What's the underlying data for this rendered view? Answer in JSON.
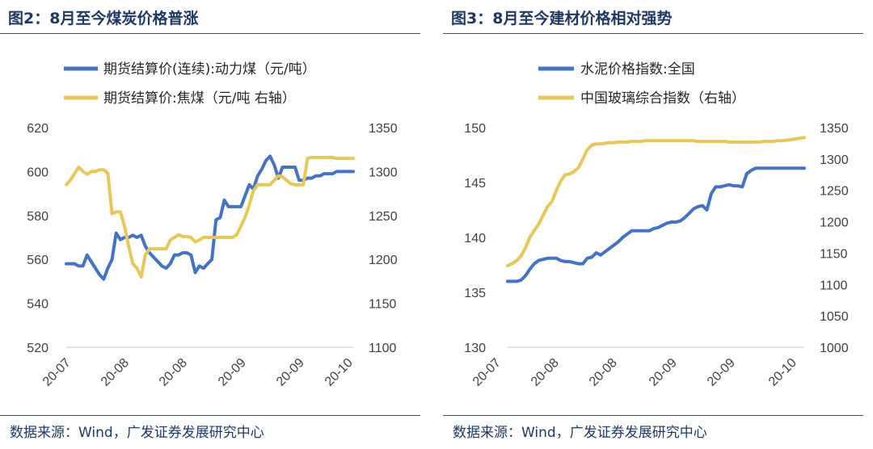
{
  "panels": [
    {
      "figure_title": "图2：8月至今煤炭价格普涨",
      "source": "数据来源：Wind，广发证券发展研究中心"
    },
    {
      "figure_title": "图3：8月至今建材价格相对强势",
      "source": "数据来源：Wind，广发证券发展研究中心"
    }
  ],
  "colors": {
    "blue": "#4472c4",
    "gold": "#e6c85a",
    "title": "#1f3864",
    "rule": "#44546a"
  },
  "chart_data": [
    {
      "type": "line",
      "title": "",
      "x_tick_labels": [
        "20-07",
        "20-08",
        "20-08",
        "20-09",
        "20-09",
        "20-10"
      ],
      "ylim_left": [
        520,
        620
      ],
      "yticks_left": [
        520,
        540,
        560,
        580,
        600,
        620
      ],
      "ylim_right": [
        1100,
        1350
      ],
      "yticks_right": [
        1100,
        1150,
        1200,
        1250,
        1300,
        1350
      ],
      "legend_position": "top",
      "series": [
        {
          "name": "期货结算价(连续):动力煤（元/吨）",
          "axis": "left",
          "color": "blue",
          "values": [
            558,
            558,
            558,
            557,
            557,
            562,
            559,
            556,
            553,
            551,
            556,
            560,
            572,
            569,
            570,
            570,
            571,
            570,
            571,
            566,
            563,
            561,
            559,
            557,
            556,
            558,
            562,
            562,
            563,
            563,
            562,
            554,
            557,
            556,
            558,
            560,
            578,
            579,
            587,
            584,
            584,
            584,
            584,
            589,
            594,
            592,
            598,
            601,
            605,
            607,
            603,
            597,
            602,
            602,
            602,
            602,
            596,
            596,
            597,
            597,
            598,
            598,
            599,
            599,
            599,
            600,
            600,
            600,
            600,
            600
          ]
        },
        {
          "name": "期货结算价:焦煤（元/吨 右轴）",
          "axis": "right",
          "color": "gold",
          "values": [
            1285,
            1290,
            1298,
            1305,
            1300,
            1297,
            1300,
            1300,
            1302,
            1302,
            1298,
            1252,
            1254,
            1254,
            1238,
            1215,
            1195,
            1190,
            1180,
            1205,
            1212,
            1212,
            1212,
            1212,
            1212,
            1222,
            1225,
            1228,
            1226,
            1226,
            1225,
            1220,
            1222,
            1225,
            1225,
            1225,
            1225,
            1225,
            1225,
            1225,
            1225,
            1228,
            1238,
            1248,
            1262,
            1278,
            1285,
            1285,
            1285,
            1285,
            1290,
            1295,
            1294,
            1290,
            1286,
            1285,
            1285,
            1285,
            1315,
            1316,
            1316,
            1316,
            1316,
            1316,
            1316,
            1315,
            1315,
            1315,
            1315,
            1315
          ]
        }
      ]
    },
    {
      "type": "line",
      "title": "",
      "x_tick_labels": [
        "20-07",
        "20-08",
        "20-08",
        "20-09",
        "20-09",
        "20-10"
      ],
      "ylim_left": [
        130,
        150
      ],
      "yticks_left": [
        130,
        135,
        140,
        145,
        150
      ],
      "ylim_right": [
        1000,
        1350
      ],
      "yticks_right": [
        1000,
        1050,
        1100,
        1150,
        1200,
        1250,
        1300,
        1350
      ],
      "legend_position": "top",
      "series": [
        {
          "name": "水泥价格指数:全国",
          "axis": "left",
          "color": "blue",
          "values": [
            136.0,
            136.0,
            136.0,
            136.1,
            136.5,
            137.1,
            137.6,
            137.9,
            138.0,
            138.1,
            138.1,
            138.1,
            137.9,
            137.8,
            137.8,
            137.7,
            137.6,
            137.6,
            138.1,
            138.2,
            138.6,
            138.4,
            138.7,
            139.0,
            139.3,
            139.6,
            140.0,
            140.3,
            140.6,
            140.6,
            140.6,
            140.6,
            140.6,
            140.8,
            140.9,
            141.1,
            141.3,
            141.4,
            141.4,
            141.5,
            141.8,
            142.2,
            142.6,
            142.8,
            142.9,
            142.5,
            144.0,
            144.6,
            144.6,
            144.7,
            144.8,
            144.7,
            144.7,
            144.6,
            145.8,
            146.1,
            146.3,
            146.3,
            146.3,
            146.3,
            146.3,
            146.3,
            146.3,
            146.3,
            146.3,
            146.3,
            146.3,
            146.3
          ]
        },
        {
          "name": "中国玻璃综合指数（右轴）",
          "axis": "right",
          "color": "gold",
          "values": [
            1130,
            1133,
            1138,
            1145,
            1158,
            1175,
            1186,
            1196,
            1210,
            1224,
            1232,
            1250,
            1265,
            1275,
            1276,
            1280,
            1286,
            1300,
            1315,
            1322,
            1324,
            1324,
            1325,
            1326,
            1326,
            1327,
            1327,
            1327,
            1328,
            1328,
            1328,
            1329,
            1329,
            1329,
            1329,
            1329,
            1329,
            1329,
            1329,
            1329,
            1329,
            1329,
            1329,
            1328,
            1328,
            1328,
            1328,
            1328,
            1328,
            1328,
            1327,
            1327,
            1327,
            1327,
            1327,
            1327,
            1327,
            1327,
            1328,
            1328,
            1328,
            1329,
            1329,
            1330,
            1331,
            1332,
            1333,
            1334
          ]
        }
      ]
    }
  ]
}
